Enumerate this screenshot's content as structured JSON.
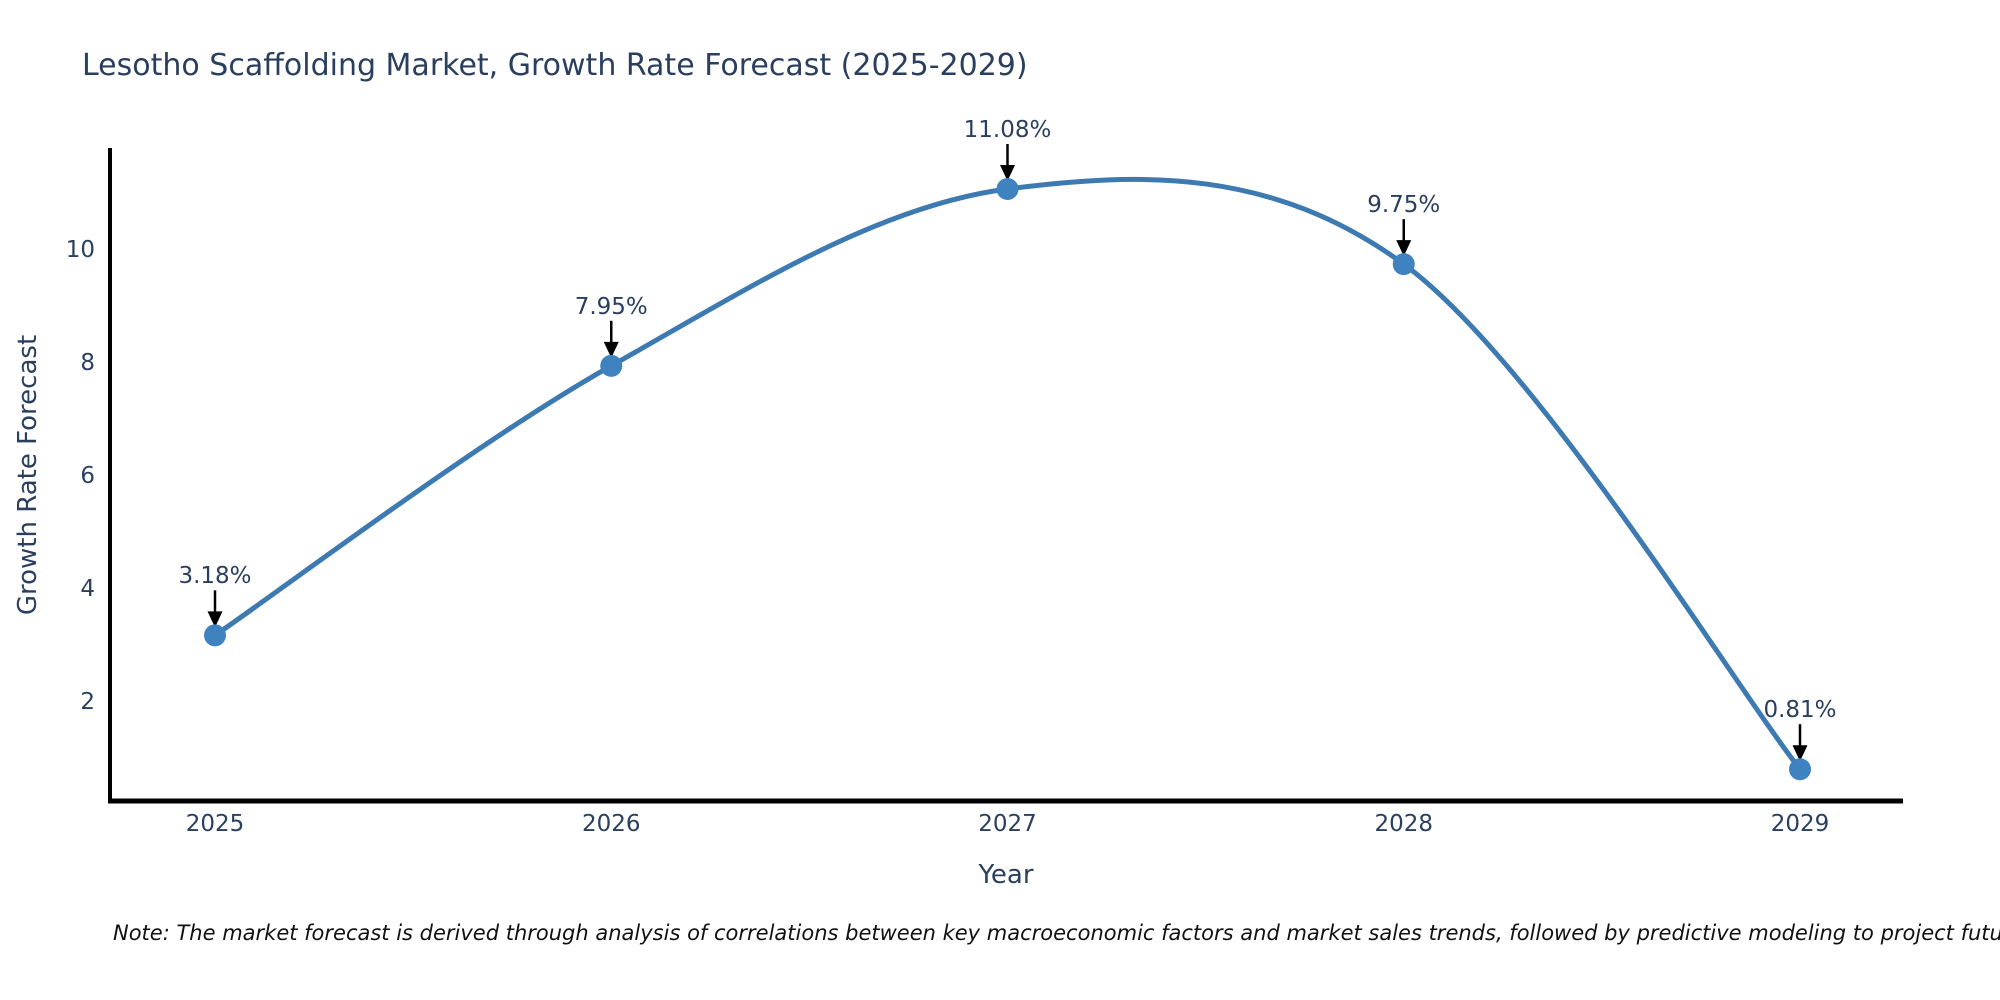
{
  "note": "Note: The market forecast is derived through analysis of correlations between key macroeconomic factors and market sales trends, followed by predictive modeling to project future sales",
  "chart_data": {
    "type": "line",
    "line_shape": "spline",
    "title": "Lesotho Scaffolding Market, Growth Rate Forecast (2025-2029)",
    "xlabel": "Year",
    "ylabel": "Growth Rate Forecast",
    "series": [
      {
        "name": "Growth Rate Forecast",
        "x": [
          2025,
          2026,
          2027,
          2028,
          2029
        ],
        "values": [
          3.18,
          7.95,
          11.08,
          9.75,
          0.81
        ],
        "point_labels": [
          "3.18%",
          "7.95%",
          "11.08%",
          "9.75%",
          "0.81%"
        ]
      }
    ],
    "categories": [
      "2025",
      "2026",
      "2027",
      "2028",
      "2029"
    ],
    "yticks": [
      2,
      4,
      6,
      8,
      10
    ],
    "ylim": [
      0.25,
      11.8
    ],
    "grid": false,
    "legend_position": "none",
    "markers": true,
    "annotations_have_arrows": true,
    "colors": {
      "line": "#3d7ab2",
      "marker": "#3e82c0",
      "axis_line": "#000000",
      "text": "#2a3f5f",
      "arrow": "#000000",
      "background": "#ffffff"
    }
  }
}
